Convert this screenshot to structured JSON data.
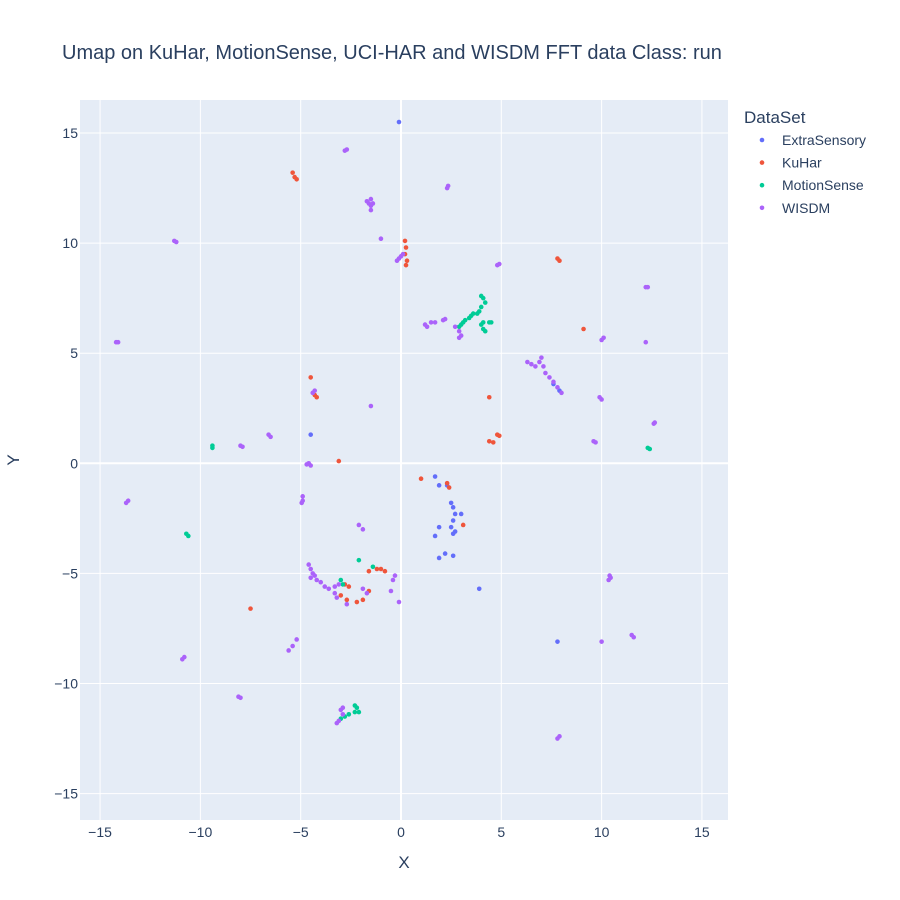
{
  "chart_data": {
    "type": "scatter",
    "title": "Umap on KuHar, MotionSense, UCI-HAR and WISDM   FFT data   Class: run",
    "xlabel": "X",
    "ylabel": "Y",
    "xlim": [
      -16,
      16.3
    ],
    "ylim": [
      -16.2,
      16.5
    ],
    "xticks": [
      -15,
      -10,
      -5,
      0,
      5,
      10,
      15
    ],
    "yticks": [
      -15,
      -10,
      -5,
      0,
      5,
      10,
      15
    ],
    "grid": true,
    "legend_title": "DataSet",
    "legend_position": "top-right",
    "series": [
      {
        "name": "ExtraSensory",
        "color": "#636efa",
        "points": [
          [
            -0.1,
            15.5
          ],
          [
            1.7,
            -0.6
          ],
          [
            1.9,
            -1.0
          ],
          [
            2.3,
            -1.0
          ],
          [
            2.5,
            -1.8
          ],
          [
            2.6,
            -2.0
          ],
          [
            2.7,
            -2.3
          ],
          [
            2.6,
            -2.6
          ],
          [
            2.5,
            -2.9
          ],
          [
            2.7,
            -3.1
          ],
          [
            2.6,
            -3.2
          ],
          [
            1.7,
            -3.3
          ],
          [
            3.0,
            -2.3
          ],
          [
            1.9,
            -2.9
          ],
          [
            2.2,
            -4.1
          ],
          [
            2.6,
            -4.2
          ],
          [
            1.9,
            -4.3
          ],
          [
            3.9,
            -5.7
          ],
          [
            7.8,
            -8.1
          ],
          [
            -4.5,
            1.3
          ],
          [
            7.9,
            3.3
          ],
          [
            7.6,
            3.6
          ]
        ]
      },
      {
        "name": "KuHar",
        "color": "#EF553B",
        "points": [
          [
            -5.4,
            13.2
          ],
          [
            -5.3,
            13.0
          ],
          [
            -5.2,
            12.9
          ],
          [
            0.2,
            10.1
          ],
          [
            0.25,
            9.8
          ],
          [
            0.2,
            9.5
          ],
          [
            0.3,
            9.2
          ],
          [
            0.25,
            9.0
          ],
          [
            7.8,
            9.3
          ],
          [
            7.9,
            9.2
          ],
          [
            9.1,
            6.1
          ],
          [
            -4.5,
            3.9
          ],
          [
            -4.3,
            3.1
          ],
          [
            -4.2,
            3.0
          ],
          [
            4.4,
            1.0
          ],
          [
            4.6,
            0.95
          ],
          [
            4.8,
            1.3
          ],
          [
            4.9,
            1.25
          ],
          [
            4.4,
            3.0
          ],
          [
            -3.1,
            0.1
          ],
          [
            1.0,
            -0.7
          ],
          [
            2.3,
            -0.9
          ],
          [
            2.4,
            -1.1
          ],
          [
            3.1,
            -2.8
          ],
          [
            -7.5,
            -6.6
          ],
          [
            -1.6,
            -4.9
          ],
          [
            -1.2,
            -4.8
          ],
          [
            -1.0,
            -4.8
          ],
          [
            -0.8,
            -4.9
          ],
          [
            -2.8,
            -5.5
          ],
          [
            -2.6,
            -5.6
          ],
          [
            -3.0,
            -6.0
          ],
          [
            -2.7,
            -6.2
          ],
          [
            -2.2,
            -6.3
          ],
          [
            -1.9,
            -6.2
          ],
          [
            -1.6,
            -5.8
          ]
        ]
      },
      {
        "name": "MotionSense",
        "color": "#00cc96",
        "points": [
          [
            4.0,
            7.6
          ],
          [
            4.1,
            7.5
          ],
          [
            4.2,
            7.3
          ],
          [
            4.0,
            7.1
          ],
          [
            3.9,
            6.9
          ],
          [
            3.8,
            6.8
          ],
          [
            3.6,
            6.8
          ],
          [
            3.5,
            6.7
          ],
          [
            3.4,
            6.6
          ],
          [
            3.2,
            6.5
          ],
          [
            3.1,
            6.4
          ],
          [
            3.0,
            6.3
          ],
          [
            2.9,
            6.2
          ],
          [
            4.1,
            6.4
          ],
          [
            4.0,
            6.3
          ],
          [
            4.1,
            6.1
          ],
          [
            4.2,
            6.0
          ],
          [
            4.4,
            6.4
          ],
          [
            4.5,
            6.4
          ],
          [
            -9.4,
            0.8
          ],
          [
            -9.4,
            0.7
          ],
          [
            -10.7,
            -3.2
          ],
          [
            -10.6,
            -3.3
          ],
          [
            12.3,
            0.7
          ],
          [
            12.4,
            0.65
          ],
          [
            -2.1,
            -4.4
          ],
          [
            -1.4,
            -4.7
          ],
          [
            -3.0,
            -5.3
          ],
          [
            -2.9,
            -5.5
          ],
          [
            -2.3,
            -11.0
          ],
          [
            -2.2,
            -11.1
          ],
          [
            -2.3,
            -11.3
          ],
          [
            -2.1,
            -11.3
          ],
          [
            -2.6,
            -11.4
          ],
          [
            -2.8,
            -11.5
          ],
          [
            -3.0,
            -11.6
          ]
        ]
      },
      {
        "name": "WISDM",
        "color": "#ab63fa",
        "points": [
          [
            -2.8,
            14.2
          ],
          [
            -2.7,
            14.25
          ],
          [
            2.3,
            12.5
          ],
          [
            2.35,
            12.6
          ],
          [
            -1.5,
            12.0
          ],
          [
            -1.6,
            11.8
          ],
          [
            -1.5,
            11.7
          ],
          [
            -1.7,
            11.9
          ],
          [
            -1.4,
            11.8
          ],
          [
            -1.5,
            11.5
          ],
          [
            -11.3,
            10.1
          ],
          [
            -11.2,
            10.05
          ],
          [
            -1.0,
            10.2
          ],
          [
            0.0,
            9.4
          ],
          [
            -0.1,
            9.3
          ],
          [
            -0.2,
            9.2
          ],
          [
            0.1,
            9.5
          ],
          [
            4.8,
            9.0
          ],
          [
            4.9,
            9.05
          ],
          [
            12.2,
            8.0
          ],
          [
            12.3,
            8.0
          ],
          [
            1.2,
            6.3
          ],
          [
            1.3,
            6.2
          ],
          [
            1.5,
            6.4
          ],
          [
            1.7,
            6.4
          ],
          [
            2.1,
            6.5
          ],
          [
            2.2,
            6.55
          ],
          [
            2.7,
            6.2
          ],
          [
            2.9,
            6.0
          ],
          [
            3.0,
            5.8
          ],
          [
            2.9,
            5.7
          ],
          [
            10.1,
            5.7
          ],
          [
            10.0,
            5.6
          ],
          [
            12.2,
            5.5
          ],
          [
            -14.2,
            5.5
          ],
          [
            -14.1,
            5.5
          ],
          [
            6.3,
            4.6
          ],
          [
            6.5,
            4.5
          ],
          [
            6.7,
            4.4
          ],
          [
            6.9,
            4.6
          ],
          [
            7.0,
            4.8
          ],
          [
            7.1,
            4.4
          ],
          [
            7.2,
            4.1
          ],
          [
            7.4,
            3.9
          ],
          [
            7.6,
            3.7
          ],
          [
            7.8,
            3.45
          ],
          [
            8.0,
            3.2
          ],
          [
            -4.3,
            3.3
          ],
          [
            -4.4,
            3.2
          ],
          [
            9.9,
            3.0
          ],
          [
            10.0,
            2.9
          ],
          [
            12.6,
            1.8
          ],
          [
            12.65,
            1.85
          ],
          [
            -1.5,
            2.6
          ],
          [
            -6.6,
            1.3
          ],
          [
            -6.5,
            1.2
          ],
          [
            -8.0,
            0.8
          ],
          [
            -7.9,
            0.75
          ],
          [
            9.6,
            1.0
          ],
          [
            9.7,
            0.95
          ],
          [
            -4.7,
            -0.05
          ],
          [
            -4.6,
            0.0
          ],
          [
            -4.5,
            -0.1
          ],
          [
            -4.9,
            -1.5
          ],
          [
            -4.9,
            -1.7
          ],
          [
            -4.95,
            -1.8
          ],
          [
            -13.6,
            -1.7
          ],
          [
            -13.7,
            -1.8
          ],
          [
            -2.1,
            -2.8
          ],
          [
            -1.9,
            -3.0
          ],
          [
            -4.6,
            -4.6
          ],
          [
            -4.5,
            -4.8
          ],
          [
            -4.4,
            -5.0
          ],
          [
            -4.3,
            -5.1
          ],
          [
            -4.5,
            -5.2
          ],
          [
            -4.2,
            -5.3
          ],
          [
            -4.0,
            -5.4
          ],
          [
            -3.8,
            -5.6
          ],
          [
            -3.6,
            -5.7
          ],
          [
            -3.3,
            -5.6
          ],
          [
            -3.1,
            -5.5
          ],
          [
            -3.3,
            -5.9
          ],
          [
            -3.2,
            -6.1
          ],
          [
            -2.7,
            -6.4
          ],
          [
            -1.9,
            -5.7
          ],
          [
            -1.7,
            -5.9
          ],
          [
            -0.4,
            -5.3
          ],
          [
            -0.5,
            -5.8
          ],
          [
            -0.3,
            -5.1
          ],
          [
            -0.1,
            -6.3
          ],
          [
            10.4,
            -5.1
          ],
          [
            10.45,
            -5.2
          ],
          [
            10.35,
            -5.3
          ],
          [
            10.0,
            -8.1
          ],
          [
            11.5,
            -7.8
          ],
          [
            11.6,
            -7.9
          ],
          [
            -5.2,
            -8.0
          ],
          [
            -5.4,
            -8.3
          ],
          [
            -5.6,
            -8.5
          ],
          [
            -10.9,
            -8.9
          ],
          [
            -10.8,
            -8.8
          ],
          [
            -8.1,
            -10.6
          ],
          [
            -8.0,
            -10.65
          ],
          [
            -2.9,
            -11.1
          ],
          [
            -3.0,
            -11.2
          ],
          [
            -2.9,
            -11.4
          ],
          [
            -3.2,
            -11.8
          ],
          [
            -3.1,
            -11.7
          ],
          [
            7.8,
            -12.5
          ],
          [
            7.9,
            -12.4
          ]
        ]
      }
    ]
  }
}
